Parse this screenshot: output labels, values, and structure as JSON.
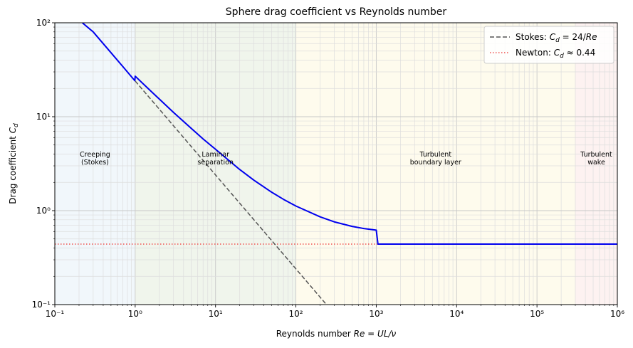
{
  "chart_data": {
    "type": "line",
    "title": "Sphere drag coefficient vs Reynolds number",
    "xlabel": "Reynolds number Re = UL/ν",
    "ylabel": "Drag coefficient C_d",
    "xscale": "log",
    "yscale": "log",
    "xlim": [
      0.1,
      1000000
    ],
    "ylim": [
      0.1,
      100
    ],
    "grid": "on (major and minor)",
    "legend": "top-right",
    "x_ticks": [
      {
        "value": 0.1,
        "label": "10⁻¹"
      },
      {
        "value": 1,
        "label": "10⁰"
      },
      {
        "value": 10,
        "label": "10¹"
      },
      {
        "value": 100,
        "label": "10²"
      },
      {
        "value": 1000,
        "label": "10³"
      },
      {
        "value": 10000,
        "label": "10⁴"
      },
      {
        "value": 100000,
        "label": "10⁵"
      },
      {
        "value": 1000000,
        "label": "10⁶"
      }
    ],
    "y_ticks": [
      {
        "value": 0.1,
        "label": "10⁻¹"
      },
      {
        "value": 1,
        "label": "10⁰"
      },
      {
        "value": 10,
        "label": "10¹"
      },
      {
        "value": 100,
        "label": "10²"
      }
    ],
    "regions": [
      {
        "label": [
          "Creeping",
          "(Stokes)"
        ],
        "x_range": [
          0.1,
          1
        ],
        "color": "#e8f1f8"
      },
      {
        "label": [
          "Laminar",
          "separation"
        ],
        "x_range": [
          1,
          100
        ],
        "color": "#e6efdf"
      },
      {
        "label": [
          "Turbulent",
          "boundary layer"
        ],
        "x_range": [
          100,
          300000
        ],
        "color": "#fdf8e1"
      },
      {
        "label": [
          "Turbulent",
          "wake"
        ],
        "x_range": [
          300000,
          1000000
        ],
        "color": "#fbe9e8"
      }
    ],
    "series": [
      {
        "color": "#0000ee",
        "style": "solid",
        "points": [
          [
            0.22,
            100
          ],
          [
            0.3,
            80
          ],
          [
            0.5,
            48
          ],
          [
            0.7,
            34.3
          ],
          [
            0.99,
            24.2
          ],
          [
            1.0,
            27.0
          ],
          [
            1.5,
            19.4
          ],
          [
            2,
            15.4
          ],
          [
            3,
            11.1
          ],
          [
            5,
            7.5
          ],
          [
            7,
            5.8
          ],
          [
            10,
            4.5
          ],
          [
            20,
            2.74
          ],
          [
            30,
            2.11
          ],
          [
            50,
            1.57
          ],
          [
            70,
            1.32
          ],
          [
            100,
            1.12
          ],
          [
            200,
            0.86
          ],
          [
            300,
            0.76
          ],
          [
            500,
            0.68
          ],
          [
            700,
            0.645
          ],
          [
            1000,
            0.62
          ],
          [
            1050,
            0.44
          ],
          [
            1000000,
            0.44
          ]
        ]
      },
      {
        "name": "Stokes: C_d = 24/Re",
        "color": "#555555",
        "style": "dashed",
        "points": [
          [
            1,
            24
          ],
          [
            240,
            0.1
          ]
        ]
      },
      {
        "name": "Newton: C_d ≈ 0.44",
        "color": "#ef5350",
        "style": "dotted",
        "points": [
          [
            0.1,
            0.44
          ],
          [
            1000000,
            0.44
          ]
        ]
      }
    ],
    "legend_entries": [
      {
        "prefix": "Stokes: ",
        "var": "C",
        "sub": "d",
        "suffix": " = 24/",
        "suffix_italic": "Re"
      },
      {
        "prefix": "Newton: ",
        "var": "C",
        "sub": "d",
        "suffix": " ≈ 0.44",
        "suffix_italic": ""
      }
    ],
    "xlabel_parts": {
      "prefix": "Reynolds number ",
      "math": "Re = UL/ν"
    },
    "ylabel_parts": {
      "prefix": "Drag coefficient ",
      "var": "C",
      "sub": "d"
    }
  }
}
